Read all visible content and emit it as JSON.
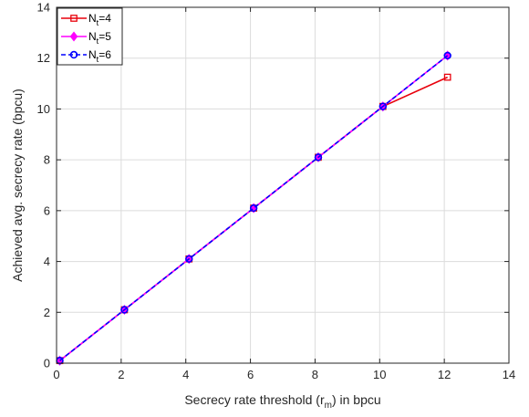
{
  "chart_data": {
    "type": "line",
    "xlabel": {
      "pre": "Secrecy rate threshold (r",
      "sub": "m",
      "post": ") in bpcu"
    },
    "ylabel": "Achieved avg. secrecy rate (bpcu)",
    "xlim": [
      0,
      14
    ],
    "ylim": [
      0,
      14
    ],
    "xticks": [
      0,
      2,
      4,
      6,
      8,
      10,
      12,
      14
    ],
    "yticks": [
      0,
      2,
      4,
      6,
      8,
      10,
      12,
      14
    ],
    "grid": true,
    "legend_position": "top-left",
    "x": [
      0.1,
      2.1,
      4.1,
      6.1,
      8.1,
      10.1,
      12.1
    ],
    "series": [
      {
        "name": {
          "pre": "N",
          "sub": "t",
          "post": "=4"
        },
        "values": [
          0.1,
          2.1,
          4.1,
          6.1,
          8.1,
          10.1,
          11.25
        ],
        "color": "#e8000b",
        "dash": "solid",
        "marker": "square"
      },
      {
        "name": {
          "pre": "N",
          "sub": "t",
          "post": "=5"
        },
        "values": [
          0.1,
          2.1,
          4.1,
          6.1,
          8.1,
          10.1,
          12.1
        ],
        "color": "#ff00ff",
        "dash": "solid",
        "marker": "diamond"
      },
      {
        "name": {
          "pre": "N",
          "sub": "t",
          "post": "=6"
        },
        "values": [
          0.1,
          2.1,
          4.1,
          6.1,
          8.1,
          10.1,
          12.1
        ],
        "color": "#0000ff",
        "dash": "dashed",
        "marker": "circle"
      }
    ]
  }
}
